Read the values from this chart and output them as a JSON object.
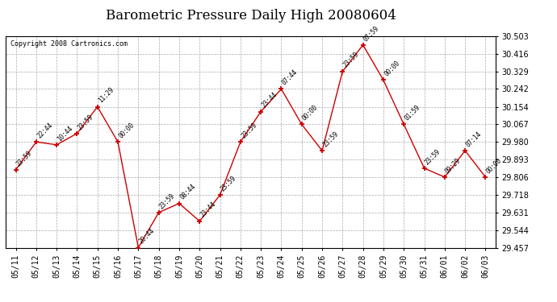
{
  "title": "Barometric Pressure Daily High 20080604",
  "copyright": "Copyright 2008 Cartronics.com",
  "x_labels": [
    "05/11",
    "05/12",
    "05/13",
    "05/14",
    "05/15",
    "05/16",
    "05/17",
    "05/18",
    "05/19",
    "05/20",
    "05/21",
    "05/22",
    "05/23",
    "05/24",
    "05/25",
    "05/26",
    "05/27",
    "05/28",
    "05/29",
    "05/30",
    "05/31",
    "06/01",
    "06/02",
    "06/03"
  ],
  "y_values": [
    29.842,
    29.98,
    29.966,
    30.022,
    30.154,
    29.98,
    29.457,
    29.631,
    29.676,
    29.588,
    29.718,
    29.98,
    30.13,
    30.242,
    30.067,
    29.937,
    30.329,
    30.46,
    30.286,
    30.067,
    29.85,
    29.806,
    29.937,
    29.806
  ],
  "time_labels": [
    "23:59",
    "22:44",
    "10:44",
    "23:59",
    "11:29",
    "00:00",
    "20:44",
    "23:59",
    "08:44",
    "23:44",
    "23:59",
    "23:59",
    "23:44",
    "07:44",
    "00:00",
    "23:59",
    "23:59",
    "07:59",
    "00:00",
    "01:59",
    "23:59",
    "09:29",
    "07:14",
    "00:00"
  ],
  "ylim_min": 29.457,
  "ylim_max": 30.503,
  "y_ticks": [
    29.457,
    29.544,
    29.631,
    29.718,
    29.806,
    29.893,
    29.98,
    30.067,
    30.154,
    30.242,
    30.329,
    30.416,
    30.503
  ],
  "line_color": "#cc0000",
  "marker_color": "#cc0000",
  "bg_color": "#ffffff",
  "grid_color": "#aaaaaa",
  "title_fontsize": 12,
  "label_fontsize": 7,
  "annot_fontsize": 5.5
}
